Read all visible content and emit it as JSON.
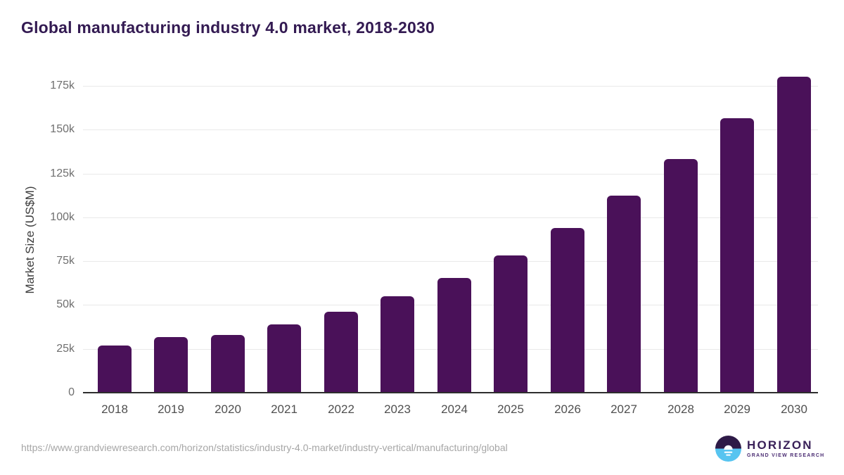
{
  "title": "Global manufacturing industry 4.0 market, 2018-2030",
  "chart_data": {
    "type": "bar",
    "title": "Global manufacturing industry 4.0 market, 2018-2030",
    "categories": [
      "2018",
      "2019",
      "2020",
      "2021",
      "2022",
      "2023",
      "2024",
      "2025",
      "2026",
      "2027",
      "2028",
      "2029",
      "2030"
    ],
    "values": [
      26500,
      31200,
      32500,
      38400,
      45600,
      54600,
      65000,
      77900,
      93500,
      112000,
      133000,
      156200,
      180000
    ],
    "values_unit": "US$M",
    "xlabel": "",
    "ylabel": "Market Size (US$M)",
    "ylim": [
      0,
      175000
    ],
    "yticks": [
      {
        "value": 0,
        "label": "0"
      },
      {
        "value": 25000,
        "label": "25k"
      },
      {
        "value": 50000,
        "label": "50k"
      },
      {
        "value": 75000,
        "label": "75k"
      },
      {
        "value": 100000,
        "label": "100k"
      },
      {
        "value": 125000,
        "label": "125k"
      },
      {
        "value": 150000,
        "label": "150k"
      },
      {
        "value": 175000,
        "label": "175k"
      }
    ],
    "grid": "horizontal",
    "legend_position": "none",
    "bar_color": "#4a1159"
  },
  "colors": {
    "title": "#331a52",
    "bar": "#4a1159",
    "grid_line": "#e9e9e9",
    "axis_line": "#2e2e2e",
    "y_tick_label": "#6f6f6f",
    "x_tick_label": "#4f4f4f",
    "source_url": "#a6a6a6",
    "logo_dark": "#2e1a47",
    "logo_blue": "#57c4f0"
  },
  "footer": {
    "source_url": "https://www.grandviewresearch.com/horizon/statistics/industry-4.0-market/industry-vertical/manufacturing/global",
    "logo": {
      "title": "HORIZON",
      "subtitle": "GRAND VIEW RESEARCH"
    }
  }
}
